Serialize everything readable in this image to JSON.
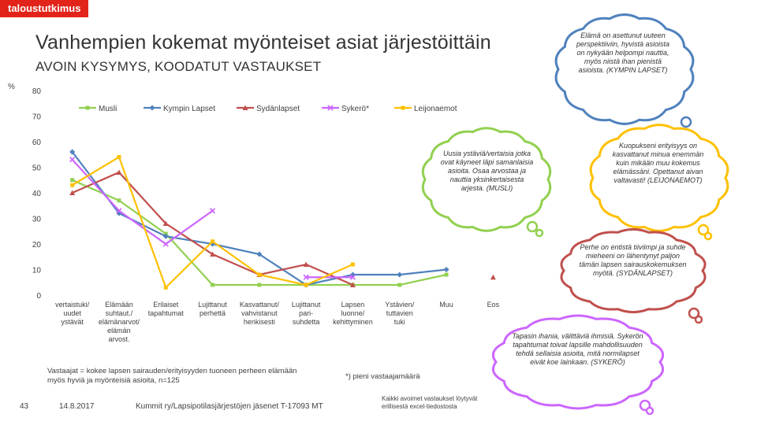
{
  "brand": "taloustutkimus",
  "title": "Vanhempien kokemat myönteiset asiat järjestöittäin",
  "subtitle": "AVOIN KYSYMYS, KOODATUT VASTAUKSET",
  "chart_data": {
    "type": "line",
    "ylabel": "%",
    "ylim": [
      0,
      80
    ],
    "yticks": [
      "0",
      "10",
      "20",
      "30",
      "40",
      "50",
      "60",
      "70",
      "80"
    ],
    "categories": [
      "vertaistuki/ uudet ystävät",
      "Elämään suhtaut./ elämänarvot/ elämän arvost.",
      "Erilaiset tapahtumat",
      "Lujittanut perhettä",
      "Kasvattanut/ vahvistanut henkisesti",
      "Lujittanut pari- suhdetta",
      "Lapsen luonne/ kehittyminen",
      "Ystävien/ tuttavien tuki",
      "Muu",
      "Eos"
    ],
    "series": [
      {
        "name": "Musli",
        "color": "#92d050",
        "marker": "square",
        "values": [
          45,
          37,
          24,
          4,
          4,
          4,
          4,
          4,
          8,
          null
        ]
      },
      {
        "name": "Kympin Lapset",
        "color": "#4f81bd",
        "marker": "diamond",
        "values": [
          56,
          32,
          23,
          20,
          16,
          4,
          8,
          8,
          10,
          null
        ]
      },
      {
        "name": "Sydänlapset",
        "color": "#c0504d",
        "marker": "triangle",
        "values": [
          40,
          48,
          28,
          16,
          8,
          12,
          4,
          null,
          null,
          7
        ]
      },
      {
        "name": "Sykerö*",
        "color": "#cc66ff",
        "marker": "x",
        "values": [
          53,
          33,
          20,
          33,
          null,
          7,
          7,
          null,
          null,
          null
        ]
      },
      {
        "name": "Leijonaemot",
        "color": "#ffc000",
        "marker": "square",
        "values": [
          43,
          54,
          3,
          21,
          8,
          4,
          12,
          null,
          null,
          null
        ]
      }
    ]
  },
  "notes": {
    "base": "Vastaajat = kokee lapsen sairauden/erityisyyden tuoneen perheen elämään myös hyviä ja myönteisiä asioita, n=125",
    "small_base": "*) pieni vastaajamäärä",
    "excel": "Kaikki avoimet vastaukset löytyvät erillisestä excel-tiedostosta"
  },
  "quotes": [
    {
      "text": "Elämä on asettunut uuteen perspektiiviin, hyvistä asioista on nykyään helpompi nauttia, myös niistä ihan pienistä asioista. (KYMPIN LAPSET)",
      "color": "#4f81bd"
    },
    {
      "text": "Uusia ystäviä/vertaisia jotka ovat käyneet läpi samanlaisia asioita. Osaa arvostaa ja nauttia yksinkertaisesta arjesta. (MUSLI)",
      "color": "#92d050"
    },
    {
      "text": "Kuopukseni erityisyys on kasvattanut minua enemmän kuin mikään muu kokemus elämässäni. Opettanut aivan valtavasti! (LEIJONAEMOT)",
      "color": "#ffc000"
    },
    {
      "text": "Perhe on entistä tiiviimpi ja suhde mieheeni on lähentynyt paljon tämän lapsen sairauskokemuksen myötä. (SYDÄNLAPSET)",
      "color": "#c0504d"
    },
    {
      "text": "Tapasin ihania, välittäviä ihmisiä. Sykerön tapahtumat toivat lapsille mahdollisuuden tehdä sellaisia asioita, mitä normilapset eivät koe lainkaan. (SYKERÖ)",
      "color": "#cc66ff"
    }
  ],
  "footer": {
    "page": "43",
    "date": "14.8.2017",
    "source": "Kummit ry/Lapsipotilasjärjestöjen jäsenet T-17093 MT"
  }
}
